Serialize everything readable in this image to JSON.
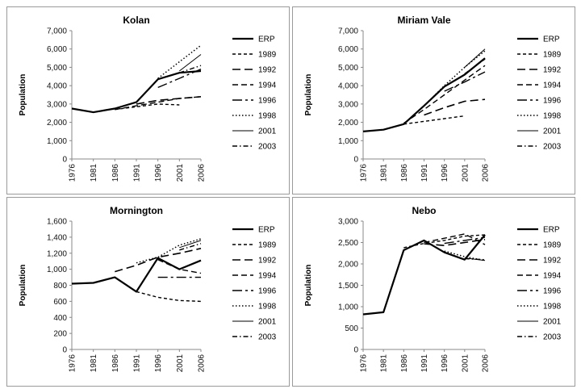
{
  "chart_data": [
    {
      "type": "line",
      "title": "Kolan",
      "ylabel": "Population",
      "xlabel": "",
      "ylim": [
        0,
        7000
      ],
      "yticks": [
        0,
        1000,
        2000,
        3000,
        4000,
        5000,
        6000,
        7000
      ],
      "ytick_labels": [
        "0",
        "1,000",
        "2,000",
        "3,000",
        "4,000",
        "5,000",
        "6,000",
        "7,000"
      ],
      "categories": [
        "1976",
        "1981",
        "1986",
        "1991",
        "1996",
        "2001",
        "2006"
      ],
      "legend_position": "right",
      "grid": false,
      "series": [
        {
          "name": "ERP",
          "style": "solid-thick",
          "values": [
            2750,
            2550,
            2750,
            3100,
            4350,
            4700,
            4800
          ]
        },
        {
          "name": "1989",
          "style": "dash-short",
          "values": [
            null,
            null,
            2700,
            2850,
            3000,
            2950,
            null
          ]
        },
        {
          "name": "1992",
          "style": "dash-long",
          "values": [
            null,
            null,
            null,
            3000,
            3200,
            3300,
            3400
          ]
        },
        {
          "name": "1994",
          "style": "dash-medium",
          "values": [
            null,
            null,
            2700,
            2900,
            3100,
            3300,
            3400
          ]
        },
        {
          "name": "1996",
          "style": "dash-dot-long",
          "values": [
            null,
            null,
            null,
            null,
            3900,
            4400,
            4900
          ]
        },
        {
          "name": "1998",
          "style": "dotted",
          "values": [
            null,
            null,
            null,
            null,
            4400,
            5300,
            6200
          ]
        },
        {
          "name": "2001",
          "style": "solid-thin",
          "values": [
            null,
            null,
            null,
            null,
            null,
            4800,
            5700
          ]
        },
        {
          "name": "2003",
          "style": "dash-dot",
          "values": [
            null,
            null,
            null,
            null,
            null,
            4700,
            5100
          ]
        }
      ]
    },
    {
      "type": "line",
      "title": "Miriam Vale",
      "ylabel": "Population",
      "xlabel": "",
      "ylim": [
        0,
        7000
      ],
      "yticks": [
        0,
        1000,
        2000,
        3000,
        4000,
        5000,
        6000,
        7000
      ],
      "ytick_labels": [
        "0",
        "1,000",
        "2,000",
        "3,000",
        "4,000",
        "5,000",
        "6,000",
        "7,000"
      ],
      "categories": [
        "1976",
        "1981",
        "1986",
        "1991",
        "1996",
        "2001",
        "2006"
      ],
      "legend_position": "right",
      "grid": false,
      "series": [
        {
          "name": "ERP",
          "style": "solid-thick",
          "values": [
            1500,
            1600,
            1900,
            2900,
            3950,
            4600,
            5500
          ]
        },
        {
          "name": "1989",
          "style": "dash-short",
          "values": [
            null,
            null,
            1900,
            2050,
            2200,
            2350,
            null
          ]
        },
        {
          "name": "1992",
          "style": "dash-long",
          "values": [
            null,
            null,
            null,
            2400,
            2800,
            3150,
            3250
          ]
        },
        {
          "name": "1994",
          "style": "dash-medium",
          "values": [
            null,
            null,
            1950,
            2700,
            3500,
            4300,
            5100
          ]
        },
        {
          "name": "1996",
          "style": "dash-dot-long",
          "values": [
            null,
            null,
            null,
            null,
            3700,
            4200,
            4750
          ]
        },
        {
          "name": "1998",
          "style": "dotted",
          "values": [
            null,
            null,
            null,
            2900,
            4000,
            5000,
            5900
          ]
        },
        {
          "name": "2001",
          "style": "solid-thin",
          "values": [
            null,
            null,
            null,
            null,
            null,
            5000,
            6000
          ]
        },
        {
          "name": "2003",
          "style": "dash-dot",
          "values": [
            null,
            null,
            null,
            null,
            null,
            4650,
            5450
          ]
        }
      ]
    },
    {
      "type": "line",
      "title": "Mornington",
      "ylabel": "Population",
      "xlabel": "",
      "ylim": [
        0,
        1600
      ],
      "yticks": [
        0,
        200,
        400,
        600,
        800,
        1000,
        1200,
        1400,
        1600
      ],
      "ytick_labels": [
        "0",
        "200",
        "400",
        "600",
        "800",
        "1,000",
        "1,200",
        "1,400",
        "1,600"
      ],
      "categories": [
        "1976",
        "1981",
        "1986",
        "1991",
        "1996",
        "2001",
        "2006"
      ],
      "legend_position": "right",
      "grid": false,
      "series": [
        {
          "name": "ERP",
          "style": "solid-thick",
          "values": [
            820,
            830,
            900,
            720,
            1140,
            1000,
            1110
          ]
        },
        {
          "name": "1989",
          "style": "dash-short",
          "values": [
            null,
            null,
            null,
            720,
            650,
            610,
            600
          ]
        },
        {
          "name": "1992",
          "style": "dash-long",
          "values": [
            null,
            null,
            970,
            1050,
            1150,
            1200,
            1260
          ]
        },
        {
          "name": "1994",
          "style": "dash-medium",
          "values": [
            null,
            null,
            null,
            null,
            1120,
            1000,
            950
          ]
        },
        {
          "name": "1996",
          "style": "dash-dot-long",
          "values": [
            null,
            null,
            null,
            null,
            900,
            900,
            900
          ]
        },
        {
          "name": "1998",
          "style": "dotted",
          "values": [
            null,
            null,
            null,
            1080,
            1150,
            1300,
            1380
          ]
        },
        {
          "name": "2001",
          "style": "solid-thin",
          "values": [
            null,
            null,
            null,
            null,
            null,
            1270,
            1360
          ]
        },
        {
          "name": "2003",
          "style": "dash-dot",
          "values": [
            null,
            null,
            null,
            null,
            null,
            1240,
            1320
          ]
        }
      ]
    },
    {
      "type": "line",
      "title": "Nebo",
      "ylabel": "Population",
      "xlabel": "",
      "ylim": [
        0,
        3000
      ],
      "yticks": [
        0,
        500,
        1000,
        1500,
        2000,
        2500,
        3000
      ],
      "ytick_labels": [
        "0",
        "500",
        "1,000",
        "1,500",
        "2,000",
        "2,500",
        "3,000"
      ],
      "categories": [
        "1976",
        "1981",
        "1986",
        "1991",
        "1996",
        "2001",
        "2006"
      ],
      "legend_position": "right",
      "grid": false,
      "series": [
        {
          "name": "ERP",
          "style": "solid-thick",
          "values": [
            820,
            870,
            2320,
            2550,
            2270,
            2100,
            2680
          ]
        },
        {
          "name": "1989",
          "style": "dash-short",
          "values": [
            null,
            null,
            2380,
            2480,
            2550,
            2650,
            2680
          ]
        },
        {
          "name": "1992",
          "style": "dash-long",
          "values": [
            null,
            null,
            null,
            2470,
            2430,
            2500,
            2570
          ]
        },
        {
          "name": "1994",
          "style": "dash-medium",
          "values": [
            null,
            null,
            null,
            2500,
            2600,
            2700,
            2450
          ]
        },
        {
          "name": "1996",
          "style": "dash-dot-long",
          "values": [
            null,
            null,
            null,
            null,
            2480,
            2550,
            2620
          ]
        },
        {
          "name": "1998",
          "style": "dotted",
          "values": [
            null,
            null,
            null,
            null,
            2300,
            2170,
            2080
          ]
        },
        {
          "name": "2001",
          "style": "solid-thin",
          "values": [
            null,
            null,
            null,
            null,
            null,
            2140,
            2080
          ]
        },
        {
          "name": "2003",
          "style": "dash-dot",
          "values": [
            null,
            null,
            null,
            null,
            null,
            2120,
            2100
          ]
        }
      ]
    }
  ]
}
